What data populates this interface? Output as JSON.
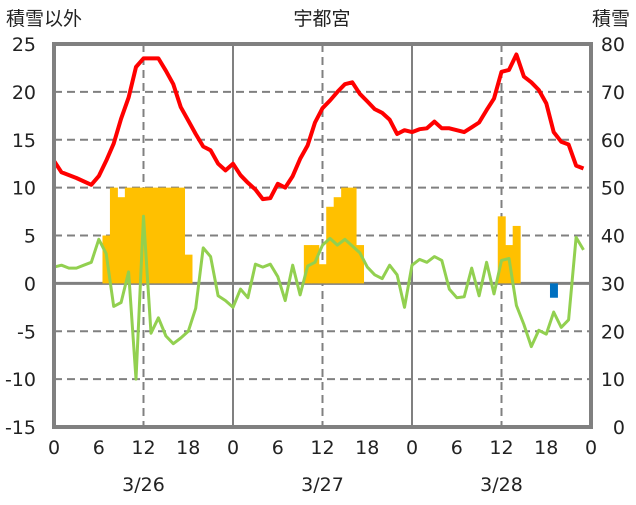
{
  "chart_data": {
    "type": "line",
    "title": "宇都宮",
    "left_axis_label": "積雪以外",
    "right_axis_label": "積雪",
    "left_ylim": [
      -15,
      25
    ],
    "left_ticks": [
      -15,
      -10,
      -5,
      0,
      5,
      10,
      15,
      20,
      25
    ],
    "right_ylim": [
      0,
      80
    ],
    "right_ticks": [
      0,
      10,
      20,
      30,
      40,
      50,
      60,
      70,
      80
    ],
    "x_range_hours": [
      0,
      72
    ],
    "x_tick_labels": [
      "0",
      "6",
      "12",
      "18",
      "0",
      "6",
      "12",
      "18",
      "0",
      "6",
      "12",
      "18",
      "0"
    ],
    "date_labels": [
      "3/26",
      "3/27",
      "3/28"
    ],
    "grid": true,
    "series": [
      {
        "name": "red-line",
        "axis": "left",
        "color": "#ff0000",
        "kind": "line",
        "x": [
          0,
          1,
          3,
          5,
          6,
          7,
          8,
          9,
          10,
          11,
          12,
          14,
          15,
          16,
          17,
          18,
          19,
          20,
          21,
          22,
          23,
          24,
          25,
          26,
          27,
          28,
          29,
          30,
          31,
          32,
          33,
          34,
          35,
          36,
          37,
          38,
          39,
          40,
          41,
          42,
          43,
          44,
          45,
          46,
          47,
          48,
          49,
          50,
          51,
          52,
          53,
          54,
          55,
          56,
          57,
          58,
          59,
          60,
          61,
          62,
          63,
          64,
          65,
          66,
          67,
          68,
          69,
          70,
          71
        ],
        "values": [
          12.8,
          11.6,
          11,
          10.3,
          11.2,
          12.8,
          14.6,
          17.2,
          19.4,
          22.6,
          23.5,
          23.5,
          22.2,
          20.8,
          18.4,
          17,
          15.6,
          14.3,
          13.9,
          12.5,
          11.8,
          12.5,
          11.3,
          10.5,
          9.8,
          8.8,
          8.9,
          10.4,
          10,
          11.2,
          13,
          14.4,
          16.8,
          18.3,
          19.1,
          20,
          20.8,
          21,
          19.8,
          19,
          18.2,
          17.8,
          17.1,
          15.6,
          16,
          15.8,
          16.1,
          16.2,
          16.9,
          16.2,
          16.2,
          16,
          15.8,
          16.3,
          16.8,
          18.1,
          19.3,
          22.1,
          22.3,
          23.9,
          21.6,
          21,
          20.2,
          18.8,
          15.8,
          14.8,
          14.5,
          12.3,
          12
        ]
      },
      {
        "name": "green-line",
        "axis": "left",
        "color": "#92d050",
        "kind": "line",
        "x": [
          0,
          1,
          2,
          3,
          4,
          5,
          6,
          7,
          8,
          9,
          10,
          11,
          12,
          13,
          14,
          15,
          16,
          17,
          18,
          19,
          20,
          21,
          22,
          23,
          24,
          25,
          26,
          27,
          28,
          29,
          30,
          31,
          32,
          33,
          34,
          35,
          36,
          37,
          38,
          39,
          40,
          41,
          42,
          43,
          44,
          45,
          46,
          47,
          48,
          49,
          50,
          51,
          52,
          53,
          54,
          55,
          56,
          57,
          58,
          59,
          60,
          61,
          62,
          63,
          64,
          65,
          66,
          67,
          68,
          69,
          70,
          71
        ],
        "values": [
          1.7,
          1.9,
          1.6,
          1.6,
          1.9,
          2.2,
          4.6,
          3.1,
          -2.4,
          -2,
          1.2,
          -10,
          7,
          -5.2,
          -3.6,
          -5.5,
          -6.3,
          -5.7,
          -5,
          -2.6,
          3.7,
          2.8,
          -1.3,
          -1.8,
          -2.5,
          -0.6,
          -1.5,
          2,
          1.7,
          2,
          0.7,
          -1.8,
          1.9,
          -1.2,
          1.8,
          2.2,
          4,
          4.7,
          4,
          4.6,
          3.9,
          3.2,
          1.7,
          0.9,
          0.5,
          1.9,
          0.9,
          -2.5,
          1.9,
          2.5,
          2.2,
          2.8,
          2.4,
          -0.6,
          -1.5,
          -1.4,
          1.6,
          -1.3,
          2.2,
          -1.1,
          2.4,
          2.6,
          -2.3,
          -4.3,
          -6.6,
          -4.9,
          -5.3,
          -3,
          -4.6,
          -3.8,
          4.8,
          3.5
        ]
      },
      {
        "name": "orange-bars",
        "axis": "left",
        "color": "#ffc000",
        "kind": "bar",
        "x": [
          7,
          8,
          9,
          10,
          11,
          12,
          13,
          14,
          15,
          16,
          17,
          18,
          34,
          35,
          36,
          37,
          38,
          39,
          40,
          41,
          60,
          61,
          62
        ],
        "values": [
          5,
          10,
          9,
          10,
          10,
          10,
          10,
          10,
          10,
          10,
          10,
          3,
          4,
          4,
          2,
          8,
          9,
          10,
          10,
          4,
          7,
          4,
          6
        ]
      },
      {
        "name": "blue-bars",
        "axis": "left",
        "color": "#0070c0",
        "kind": "bar",
        "x": [
          67
        ],
        "values": [
          -1.5
        ]
      },
      {
        "name": "purple-line",
        "axis": "right",
        "color": "#7030a0",
        "kind": "line",
        "x": [
          0,
          72
        ],
        "values": [
          0,
          0
        ]
      }
    ]
  }
}
